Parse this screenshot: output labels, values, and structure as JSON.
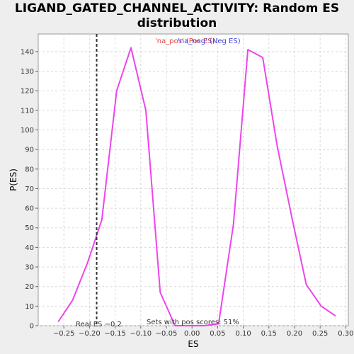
{
  "chart_data": {
    "type": "line",
    "title_line1": "LIGAND_GATED_CHANNEL_ACTIVITY: Random ES",
    "title_line2": "distribution",
    "xlabel": "ES",
    "ylabel": "P(ES)",
    "xlim": [
      -0.3,
      0.305
    ],
    "ylim": [
      0,
      149
    ],
    "xticks": [
      -0.25,
      -0.2,
      -0.15,
      -0.1,
      -0.05,
      0.0,
      0.05,
      0.1,
      0.15,
      0.2,
      0.25,
      0.3
    ],
    "xtick_labels": [
      "−0.25",
      "−0.20",
      "−0.15",
      "−0.10",
      "−0.05",
      "0.00",
      "0.05",
      "0.10",
      "0.15",
      "0.20",
      "0.25",
      "0.30"
    ],
    "yticks": [
      0,
      10,
      20,
      30,
      40,
      50,
      60,
      70,
      80,
      90,
      100,
      110,
      120,
      130,
      140
    ],
    "grid": true,
    "series": [
      {
        "color": "#ee44ee",
        "x": [
          -0.261,
          -0.233,
          -0.204,
          -0.176,
          -0.147,
          -0.119,
          -0.09,
          -0.062,
          -0.033,
          -0.005,
          0.024,
          0.052,
          0.081,
          0.109,
          0.138,
          0.166,
          0.195,
          0.223,
          0.252,
          0.28
        ],
        "y": [
          2,
          13,
          32,
          54,
          120,
          142,
          110,
          17,
          0,
          0,
          0,
          1,
          52,
          141,
          137,
          92,
          55,
          21,
          10,
          5
        ]
      }
    ],
    "marker_line": {
      "x": -0.186,
      "color": "#333333"
    },
    "legend": {
      "placement": "top-center",
      "label_pos": "'na_pos' (Pos ES)",
      "label_neg": "'na_neg' (Neg ES)",
      "color_pos": "#dd4444",
      "color_neg": "#4444dd"
    },
    "annotations": {
      "real_es": "Real ES −0.2",
      "sets_pos": "Sets with pos scores: 51%"
    }
  },
  "style": {
    "background": "#eeeeee",
    "plot_background": "#ffffff",
    "grid_color": "#d8d8d8"
  }
}
